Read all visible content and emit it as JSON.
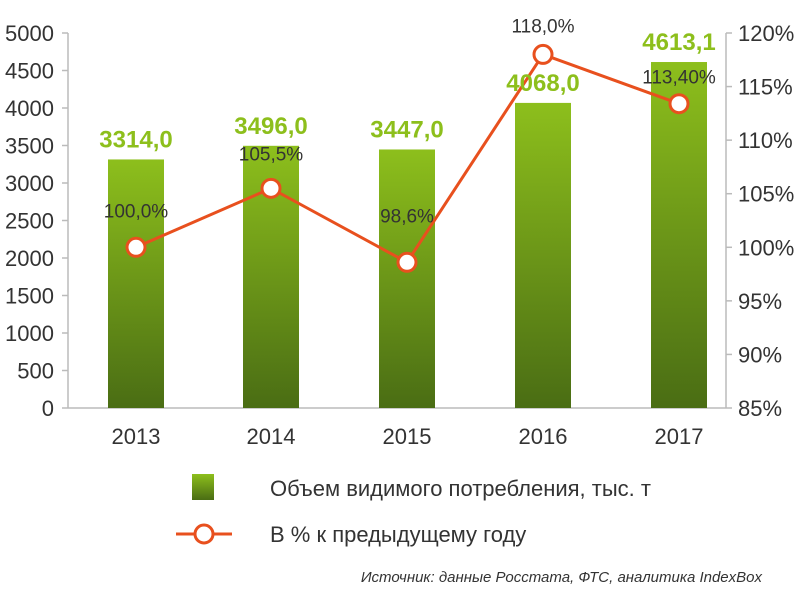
{
  "chart_data": {
    "type": "bar",
    "categories": [
      "2013",
      "2014",
      "2015",
      "2016",
      "2017"
    ],
    "series": [
      {
        "name": "Объем видимого потребления, тыс. т",
        "type": "bar",
        "axis": "left",
        "values": [
          3314.0,
          3496.0,
          3447.0,
          4068.0,
          4613.1
        ],
        "labels": [
          "3314,0",
          "3496,0",
          "3447,0",
          "4068,0",
          "4613,1"
        ]
      },
      {
        "name": "В % к предыдущему году",
        "type": "line",
        "axis": "right",
        "values": [
          100.0,
          105.5,
          98.6,
          118.0,
          113.4
        ],
        "labels": [
          "100,0%",
          "105,5%",
          "98,6%",
          "118,0%",
          "113,40%"
        ]
      }
    ],
    "y_left": {
      "ylim": [
        0,
        5000
      ],
      "ticks": [
        "0",
        "500",
        "1000",
        "1500",
        "2000",
        "2500",
        "3000",
        "3500",
        "4000",
        "4500",
        "5000"
      ]
    },
    "y_right": {
      "ylim": [
        85,
        120
      ],
      "ticks": [
        "85%",
        "90%",
        "95%",
        "100%",
        "105%",
        "110%",
        "115%",
        "120%"
      ]
    },
    "grid": false,
    "legend_position": "bottom"
  },
  "colors": {
    "bar_top": "#8dbf1c",
    "bar_bottom": "#4a6d14",
    "bar_label": "#8dbf1c",
    "line": "#e8501e",
    "axis": "#bbbbbb"
  },
  "source": "Источник: данные Росстата, ФТС, аналитика IndexBox"
}
